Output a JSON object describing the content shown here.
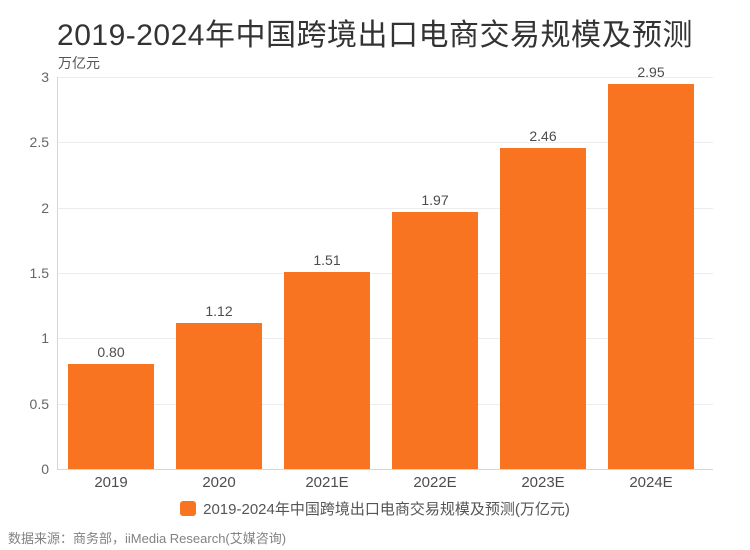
{
  "header": {
    "title": "2019-2024年中国跨境出口电商交易规模及预测"
  },
  "chart_data": {
    "type": "bar",
    "title": "2019-2024年中国跨境出口电商交易规模及预测",
    "unit_label": "万亿元",
    "categories": [
      "2019",
      "2020",
      "2021E",
      "2022E",
      "2023E",
      "2024E"
    ],
    "values": [
      0.8,
      1.12,
      1.51,
      1.97,
      2.46,
      2.95
    ],
    "value_labels": [
      "0.80",
      "1.12",
      "1.51",
      "1.97",
      "2.46",
      "2.95"
    ],
    "xlabel": "",
    "ylabel": "万亿元",
    "ylim": [
      0,
      3
    ],
    "yticks": [
      0,
      0.5,
      1,
      1.5,
      2,
      2.5,
      3
    ],
    "ytick_labels": [
      "0",
      "0.5",
      "1",
      "1.5",
      "2",
      "2.5",
      "3"
    ],
    "grid": true,
    "bar_color": "#f97421",
    "legend_position": "bottom",
    "legend_entries": [
      "2019-2024年中国跨境出口电商交易规模及预测(万亿元)"
    ]
  },
  "legend": {
    "label": "2019-2024年中国跨境出口电商交易规模及预测(万亿元)",
    "swatch_color": "#f97421"
  },
  "footer": {
    "source": "数据来源：商务部，iiMedia Research(艾媒咨询)"
  }
}
